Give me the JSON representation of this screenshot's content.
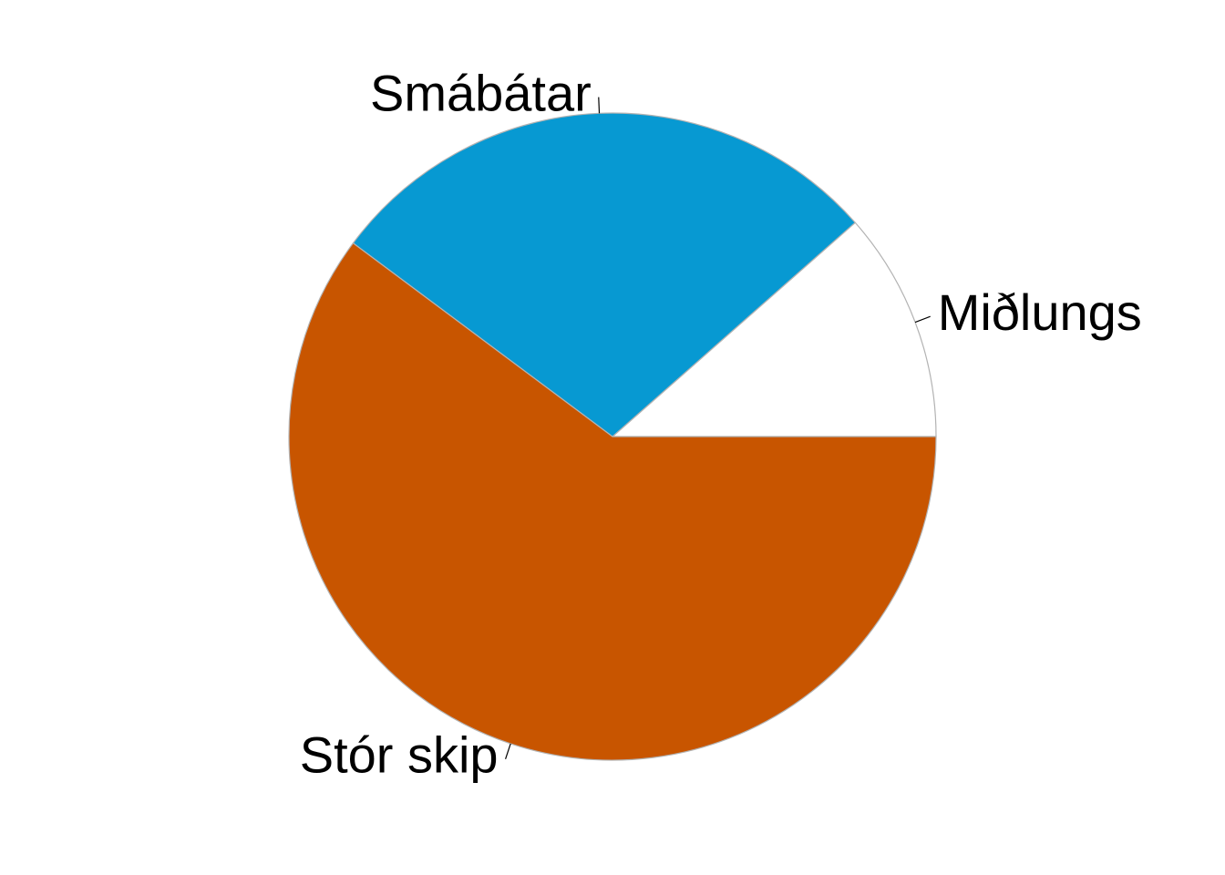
{
  "chart_data": {
    "type": "pie",
    "title": "",
    "clockwise": false,
    "start_angle_deg": 0,
    "slices": [
      {
        "label": "Miðlungs",
        "value": 11.5,
        "color": "#ffffff"
      },
      {
        "label": "Smábátar",
        "value": 28.3,
        "color": "#0799d2"
      },
      {
        "label": "Stór skip",
        "value": 60.2,
        "color": "#c85500"
      }
    ]
  }
}
